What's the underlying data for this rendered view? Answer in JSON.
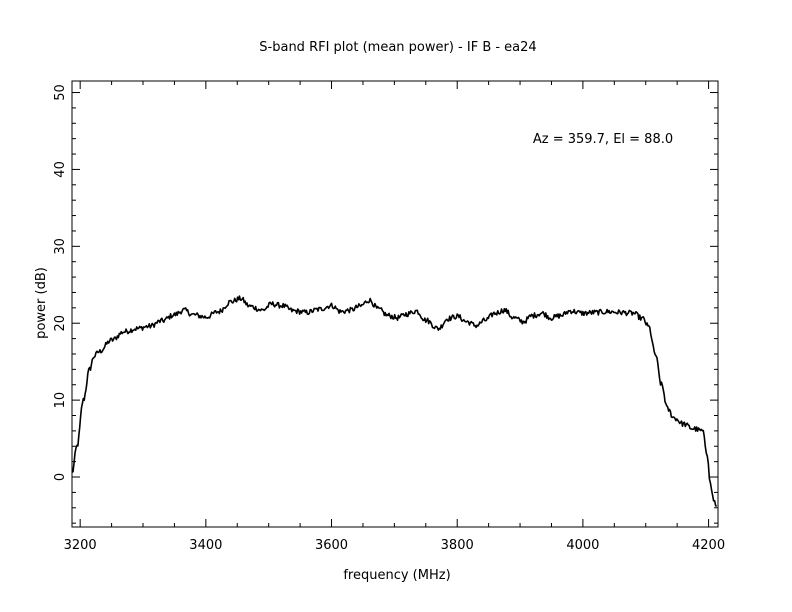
{
  "chart_data": {
    "type": "line",
    "title": "S-band RFI plot (mean power) - IF B - ea24",
    "annotation": "Az = 359.7, El = 88.0",
    "xlabel": "frequency (MHz)",
    "ylabel": "power (dB)",
    "xlim": [
      3187,
      4215
    ],
    "ylim": [
      -6.5,
      51.5
    ],
    "x_ticks": [
      3200,
      3400,
      3600,
      3800,
      4000,
      4200
    ],
    "y_ticks": [
      0,
      10,
      20,
      30,
      40,
      50
    ],
    "x_tick_labels": [
      "3200",
      "3400",
      "3600",
      "3800",
      "4000",
      "4200"
    ],
    "y_tick_labels": [
      "0",
      "10",
      "20",
      "30",
      "40",
      "50"
    ],
    "grid": false,
    "legend": "none",
    "series": [
      {
        "color": "#000000",
        "x": [
          3187,
          3195,
          3205,
          3215,
          3222,
          3230,
          3250,
          3270,
          3290,
          3310,
          3330,
          3350,
          3365,
          3380,
          3400,
          3420,
          3440,
          3455,
          3470,
          3490,
          3505,
          3520,
          3540,
          3560,
          3580,
          3600,
          3615,
          3630,
          3645,
          3660,
          3675,
          3690,
          3705,
          3720,
          3735,
          3750,
          3770,
          3785,
          3800,
          3815,
          3830,
          3845,
          3860,
          3875,
          3890,
          3905,
          3920,
          3935,
          3950,
          3965,
          3980,
          4000,
          4020,
          4040,
          4060,
          4080,
          4095,
          4105,
          4115,
          4125,
          4135,
          4145,
          4160,
          4175,
          4190,
          4198,
          4203,
          4208,
          4213
        ],
        "y": [
          0.5,
          4.0,
          10.0,
          14.0,
          15.7,
          16.3,
          17.8,
          18.9,
          19.3,
          19.6,
          20.3,
          21.1,
          21.7,
          21.1,
          20.8,
          21.5,
          22.8,
          23.2,
          22.2,
          21.7,
          22.5,
          22.3,
          21.6,
          21.4,
          21.8,
          22.3,
          21.5,
          21.7,
          22.2,
          23.0,
          21.8,
          21.0,
          20.7,
          21.2,
          21.6,
          20.4,
          19.3,
          20.6,
          20.9,
          20.2,
          19.7,
          20.4,
          21.3,
          21.7,
          20.7,
          20.2,
          21.0,
          21.3,
          20.7,
          21.0,
          21.6,
          21.3,
          21.4,
          21.5,
          21.4,
          21.3,
          20.6,
          19.5,
          16.0,
          12.0,
          8.8,
          7.7,
          6.9,
          6.3,
          6.0,
          3.0,
          -1.0,
          -3.0,
          -3.8
        ]
      }
    ]
  }
}
